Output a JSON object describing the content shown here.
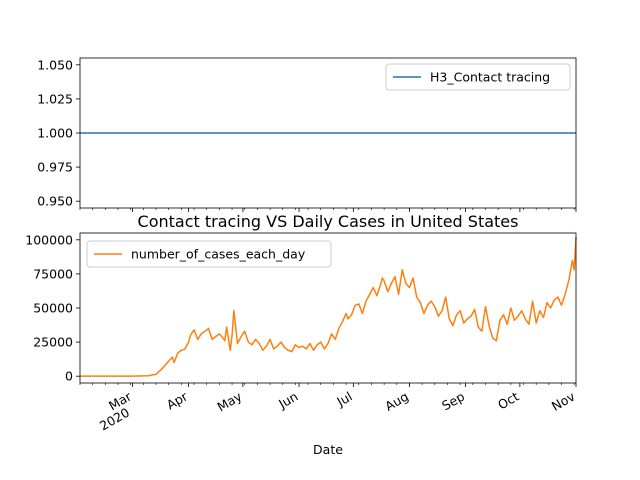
{
  "chart_data": [
    {
      "type": "line",
      "title": "",
      "xlabel": "",
      "ylabel": "",
      "ylim": [
        0.945,
        1.055
      ],
      "yticks": [
        "0.950",
        "0.975",
        "1.000",
        "1.025",
        "1.050"
      ],
      "ytick_values": [
        0.95,
        0.975,
        1.0,
        1.025,
        1.05
      ],
      "legend_position": "upper right",
      "series": [
        {
          "name": "H3_Contact tracing",
          "color": "#1f77b4",
          "x": [
            "2020-02-01",
            "2020-11-01"
          ],
          "y": [
            1.0,
            1.0
          ]
        }
      ]
    },
    {
      "type": "line",
      "title": "Contact tracing VS Daily Cases in United States",
      "xlabel": "Date",
      "ylabel": "",
      "ylim": [
        -5000,
        105000
      ],
      "yticks": [
        "0",
        "25000",
        "50000",
        "75000",
        "100000"
      ],
      "ytick_values": [
        0,
        25000,
        50000,
        75000,
        100000
      ],
      "xlim": [
        "2020-02-01",
        "2020-11-01"
      ],
      "xticks": [
        {
          "date": "2020-03-01",
          "label": "Mar",
          "label2": "2020"
        },
        {
          "date": "2020-04-01",
          "label": "Apr",
          "label2": ""
        },
        {
          "date": "2020-05-01",
          "label": "May",
          "label2": ""
        },
        {
          "date": "2020-06-01",
          "label": "Jun",
          "label2": ""
        },
        {
          "date": "2020-07-01",
          "label": "Jul",
          "label2": ""
        },
        {
          "date": "2020-08-01",
          "label": "Aug",
          "label2": ""
        },
        {
          "date": "2020-09-01",
          "label": "Sep",
          "label2": ""
        },
        {
          "date": "2020-10-01",
          "label": "Oct",
          "label2": ""
        },
        {
          "date": "2020-11-01",
          "label": "Nov",
          "label2": ""
        }
      ],
      "legend_position": "upper left",
      "series": [
        {
          "name": "number_of_cases_each_day",
          "color": "#ff7f0e",
          "x": [
            "2020-02-01",
            "2020-02-15",
            "2020-03-01",
            "2020-03-10",
            "2020-03-14",
            "2020-03-17",
            "2020-03-19",
            "2020-03-21",
            "2020-03-23",
            "2020-03-24",
            "2020-03-26",
            "2020-03-28",
            "2020-03-30",
            "2020-04-01",
            "2020-04-02",
            "2020-04-04",
            "2020-04-06",
            "2020-04-08",
            "2020-04-10",
            "2020-04-12",
            "2020-04-14",
            "2020-04-16",
            "2020-04-18",
            "2020-04-20",
            "2020-04-21",
            "2020-04-22",
            "2020-04-24",
            "2020-04-25",
            "2020-04-26",
            "2020-04-28",
            "2020-04-30",
            "2020-05-02",
            "2020-05-04",
            "2020-05-06",
            "2020-05-08",
            "2020-05-10",
            "2020-05-12",
            "2020-05-14",
            "2020-05-16",
            "2020-05-18",
            "2020-05-20",
            "2020-05-22",
            "2020-05-24",
            "2020-05-26",
            "2020-05-28",
            "2020-05-30",
            "2020-06-01",
            "2020-06-03",
            "2020-06-05",
            "2020-06-07",
            "2020-06-09",
            "2020-06-11",
            "2020-06-13",
            "2020-06-15",
            "2020-06-17",
            "2020-06-19",
            "2020-06-21",
            "2020-06-23",
            "2020-06-25",
            "2020-06-27",
            "2020-06-28",
            "2020-06-30",
            "2020-07-02",
            "2020-07-04",
            "2020-07-06",
            "2020-07-08",
            "2020-07-10",
            "2020-07-12",
            "2020-07-14",
            "2020-07-16",
            "2020-07-17",
            "2020-07-18",
            "2020-07-20",
            "2020-07-22",
            "2020-07-24",
            "2020-07-26",
            "2020-07-28",
            "2020-07-30",
            "2020-08-01",
            "2020-08-03",
            "2020-08-05",
            "2020-08-07",
            "2020-08-09",
            "2020-08-11",
            "2020-08-13",
            "2020-08-15",
            "2020-08-17",
            "2020-08-19",
            "2020-08-21",
            "2020-08-23",
            "2020-08-25",
            "2020-08-27",
            "2020-08-29",
            "2020-08-31",
            "2020-09-02",
            "2020-09-04",
            "2020-09-06",
            "2020-09-08",
            "2020-09-10",
            "2020-09-12",
            "2020-09-14",
            "2020-09-16",
            "2020-09-18",
            "2020-09-20",
            "2020-09-22",
            "2020-09-24",
            "2020-09-26",
            "2020-09-28",
            "2020-09-30",
            "2020-10-02",
            "2020-10-04",
            "2020-10-06",
            "2020-10-08",
            "2020-10-10",
            "2020-10-12",
            "2020-10-14",
            "2020-10-16",
            "2020-10-18",
            "2020-10-20",
            "2020-10-22",
            "2020-10-24",
            "2020-10-26",
            "2020-10-28",
            "2020-10-30",
            "2020-10-31",
            "2020-11-01"
          ],
          "y": [
            0,
            0,
            30,
            300,
            1500,
            5000,
            8000,
            11000,
            14000,
            10000,
            17000,
            19000,
            20000,
            25000,
            30000,
            34000,
            27000,
            31000,
            33000,
            35000,
            27000,
            29000,
            31000,
            28000,
            26000,
            36000,
            19000,
            30000,
            48000,
            24000,
            29000,
            33000,
            25000,
            23000,
            27000,
            24000,
            19000,
            22000,
            27000,
            20000,
            22000,
            25000,
            21000,
            19000,
            18000,
            23000,
            21000,
            22000,
            20000,
            24000,
            19000,
            23000,
            25000,
            20000,
            24000,
            31000,
            27000,
            35000,
            40000,
            46000,
            42000,
            45000,
            52000,
            53000,
            46000,
            55000,
            60000,
            65000,
            59000,
            67000,
            72000,
            70000,
            62000,
            68000,
            73000,
            60000,
            78000,
            68000,
            65000,
            72000,
            58000,
            54000,
            46000,
            52000,
            55000,
            51000,
            44000,
            48000,
            58000,
            42000,
            37000,
            45000,
            48000,
            39000,
            42000,
            44000,
            49000,
            36000,
            33000,
            51000,
            37000,
            28000,
            26000,
            41000,
            45000,
            38000,
            50000,
            41000,
            44000,
            48000,
            42000,
            38000,
            55000,
            39000,
            48000,
            43000,
            54000,
            50000,
            56000,
            58000,
            52000,
            60000,
            70000,
            85000,
            78000,
            102000
          ]
        }
      ]
    }
  ]
}
